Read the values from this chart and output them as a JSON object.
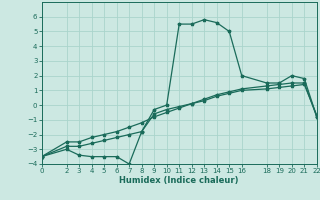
{
  "xlabel": "Humidex (Indice chaleur)",
  "bg_color": "#cce8e2",
  "line_color": "#1a6b5a",
  "grid_color": "#aad4cc",
  "xlim": [
    0,
    22
  ],
  "ylim": [
    -4,
    7
  ],
  "xticks": [
    0,
    2,
    3,
    4,
    5,
    6,
    7,
    8,
    9,
    10,
    11,
    12,
    13,
    14,
    15,
    16,
    18,
    19,
    20,
    21,
    22
  ],
  "yticks": [
    -4,
    -3,
    -2,
    -1,
    0,
    1,
    2,
    3,
    4,
    5,
    6
  ],
  "series": [
    {
      "x": [
        0,
        2,
        3,
        4,
        5,
        6,
        7,
        8,
        9,
        10,
        11,
        12,
        13,
        14,
        15,
        16,
        18,
        19,
        20,
        21,
        22
      ],
      "y": [
        -3.5,
        -3.0,
        -3.4,
        -3.5,
        -3.5,
        -3.5,
        -4.0,
        -1.8,
        -0.3,
        0.0,
        5.5,
        5.5,
        5.8,
        5.6,
        5.0,
        2.0,
        1.5,
        1.5,
        2.0,
        1.8,
        -0.8
      ]
    },
    {
      "x": [
        0,
        2,
        3,
        4,
        5,
        6,
        7,
        8,
        9,
        10,
        11,
        12,
        13,
        14,
        15,
        16,
        18,
        19,
        20,
        21,
        22
      ],
      "y": [
        -3.5,
        -2.8,
        -2.8,
        -2.6,
        -2.4,
        -2.2,
        -2.0,
        -1.8,
        -0.6,
        -0.3,
        -0.1,
        0.1,
        0.3,
        0.6,
        0.8,
        1.0,
        1.1,
        1.2,
        1.3,
        1.4,
        -0.7
      ]
    },
    {
      "x": [
        0,
        2,
        3,
        4,
        5,
        6,
        7,
        8,
        9,
        10,
        11,
        12,
        13,
        14,
        15,
        16,
        18,
        19,
        20,
        21,
        22
      ],
      "y": [
        -3.5,
        -2.5,
        -2.5,
        -2.2,
        -2.0,
        -1.8,
        -1.5,
        -1.2,
        -0.8,
        -0.5,
        -0.2,
        0.1,
        0.4,
        0.7,
        0.9,
        1.1,
        1.3,
        1.4,
        1.5,
        1.5,
        -0.8
      ]
    }
  ]
}
